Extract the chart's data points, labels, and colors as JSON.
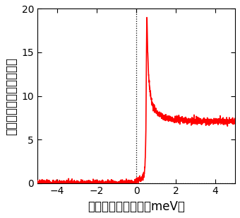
{
  "xlabel": "電子のエネルギー（meV）",
  "ylabel": "トンネルコンダクタンス",
  "xlim": [
    -5,
    5
  ],
  "ylim": [
    0,
    20
  ],
  "yticks": [
    0,
    5,
    10,
    15,
    20
  ],
  "xticks": [
    -4,
    -2,
    0,
    2,
    4
  ],
  "line_color": "#ff0000",
  "background_color": "#ffffff",
  "delta": 0.52,
  "gamma": 0.025,
  "baseline": 10.0,
  "noise_amplitude": 0.18,
  "peak_scale": 1.9,
  "xlabel_fontsize": 12,
  "ylabel_fontsize": 12,
  "tick_fontsize": 10
}
